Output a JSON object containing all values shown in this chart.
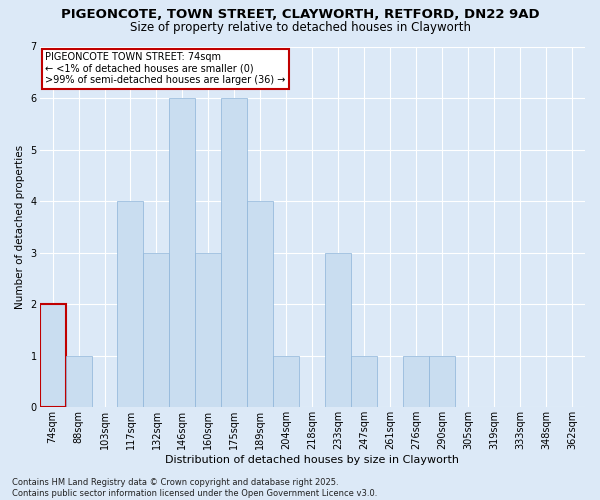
{
  "title_line1": "PIGEONCOTE, TOWN STREET, CLAYWORTH, RETFORD, DN22 9AD",
  "title_line2": "Size of property relative to detached houses in Clayworth",
  "xlabel": "Distribution of detached houses by size in Clayworth",
  "ylabel": "Number of detached properties",
  "categories": [
    "74sqm",
    "88sqm",
    "103sqm",
    "117sqm",
    "132sqm",
    "146sqm",
    "160sqm",
    "175sqm",
    "189sqm",
    "204sqm",
    "218sqm",
    "233sqm",
    "247sqm",
    "261sqm",
    "276sqm",
    "290sqm",
    "305sqm",
    "319sqm",
    "333sqm",
    "348sqm",
    "362sqm"
  ],
  "values": [
    2,
    1,
    0,
    4,
    3,
    6,
    3,
    6,
    4,
    1,
    0,
    3,
    1,
    0,
    1,
    1,
    0,
    0,
    0,
    0,
    0
  ],
  "bar_color": "#c9ddf0",
  "bar_edge_color": "#8db4d9",
  "highlight_bar_index": 0,
  "highlight_edge_color": "#c00000",
  "background_color": "#dce9f7",
  "plot_bg_color": "#dce9f7",
  "grid_color": "#ffffff",
  "annotation_text": "PIGEONCOTE TOWN STREET: 74sqm\n← <1% of detached houses are smaller (0)\n>99% of semi-detached houses are larger (36) →",
  "annotation_box_facecolor": "#ffffff",
  "annotation_box_edgecolor": "#c00000",
  "footer_line1": "Contains HM Land Registry data © Crown copyright and database right 2025.",
  "footer_line2": "Contains public sector information licensed under the Open Government Licence v3.0.",
  "ylim": [
    0,
    7
  ],
  "yticks": [
    0,
    1,
    2,
    3,
    4,
    5,
    6,
    7
  ],
  "title1_fontsize": 9.5,
  "title2_fontsize": 8.5,
  "xlabel_fontsize": 8,
  "ylabel_fontsize": 7.5,
  "tick_fontsize": 7,
  "annotation_fontsize": 7,
  "footer_fontsize": 6
}
